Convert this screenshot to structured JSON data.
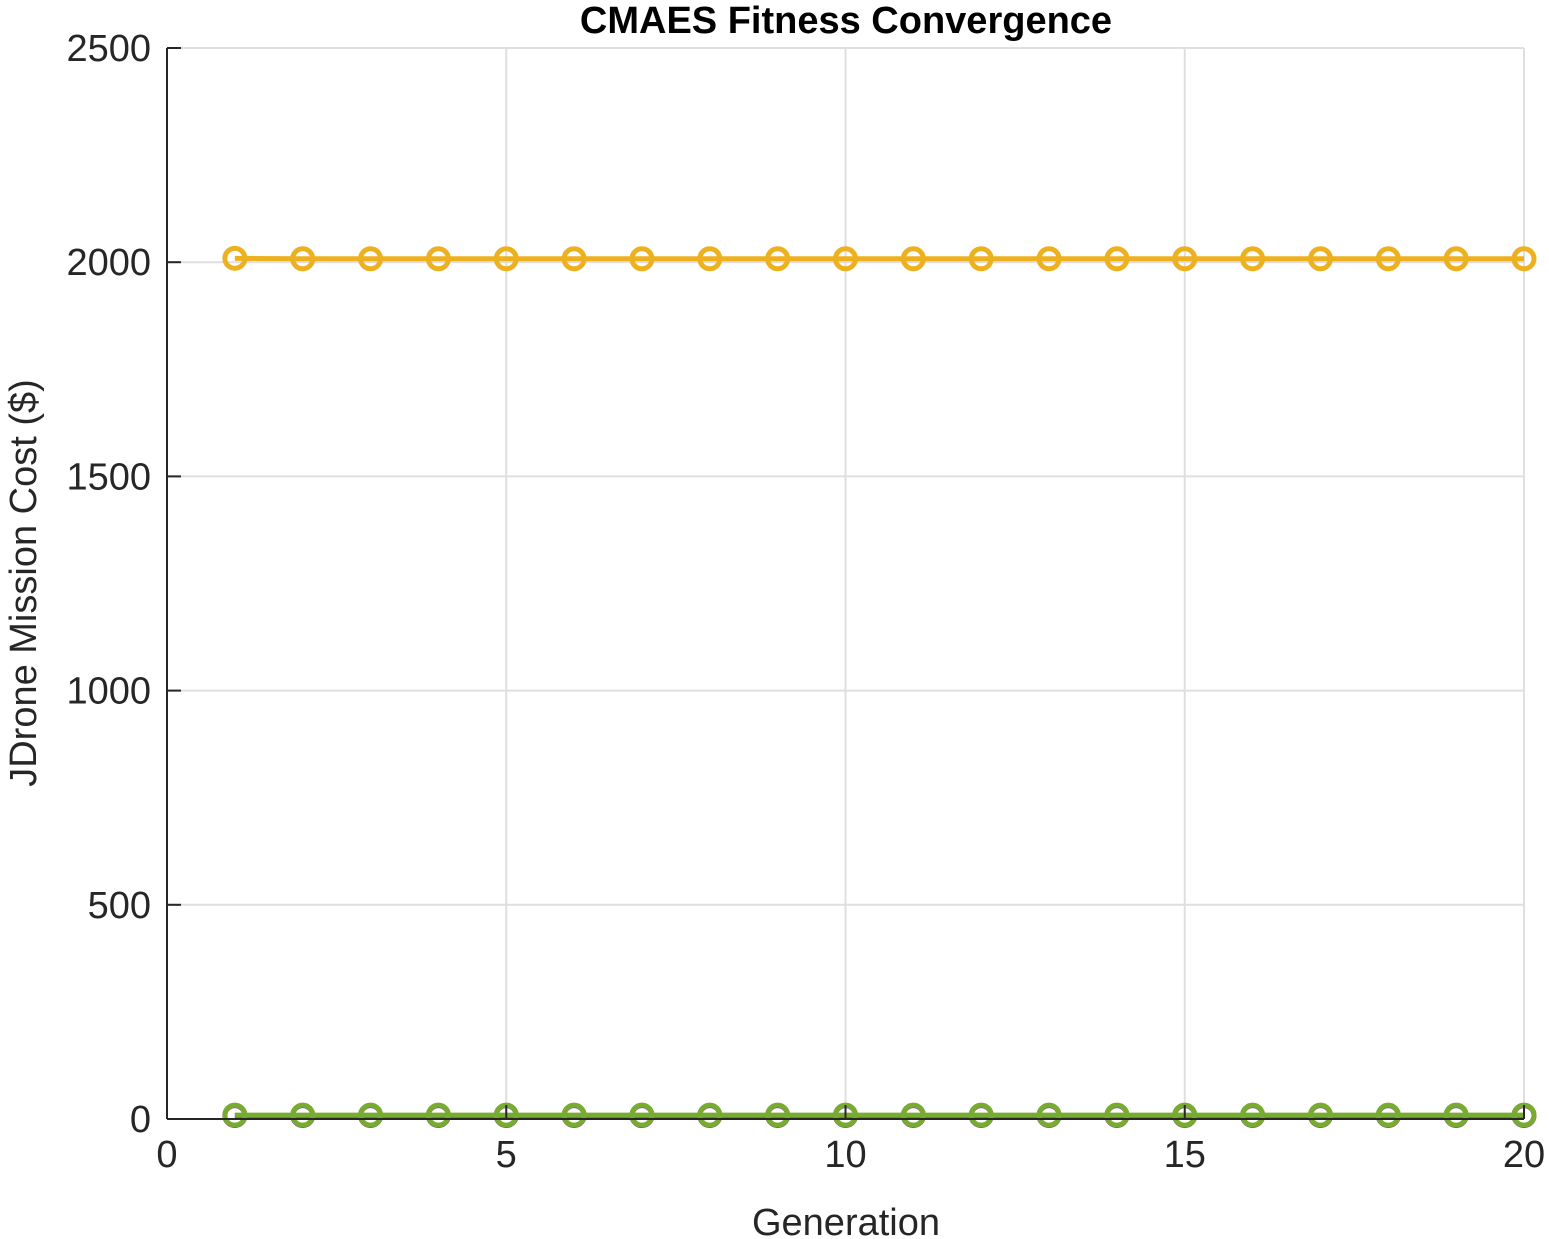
{
  "chart_data": {
    "type": "line",
    "title": "CMAES Fitness Convergence",
    "xlabel": "Generation",
    "ylabel": "JDrone Mission Cost ($)",
    "xlim": [
      0,
      20
    ],
    "ylim": [
      0,
      2500
    ],
    "xticks": [
      0,
      5,
      10,
      15,
      20
    ],
    "yticks": [
      0,
      500,
      1000,
      1500,
      2000,
      2500
    ],
    "grid": true,
    "legend": "none",
    "marker": "circle",
    "x": [
      1,
      2,
      3,
      4,
      5,
      6,
      7,
      8,
      9,
      10,
      11,
      12,
      13,
      14,
      15,
      16,
      17,
      18,
      19,
      20
    ],
    "series": [
      {
        "color": "#EDB120",
        "values": [
          2009,
          2008,
          2008,
          2008,
          2008,
          2008,
          2008,
          2008,
          2008,
          2008,
          2008,
          2008,
          2008,
          2008,
          2008,
          2008,
          2008,
          2008,
          2008,
          2008
        ]
      },
      {
        "color": "#7E2F8E",
        "values": [
          8,
          8,
          8,
          8,
          8,
          8,
          8,
          8,
          8,
          8,
          8,
          8,
          8,
          8,
          8,
          8,
          8,
          8,
          8,
          8
        ]
      },
      {
        "color": "#77AC30",
        "values": [
          9,
          9,
          9,
          9,
          9,
          9,
          9,
          9,
          9,
          9,
          9,
          9,
          9,
          9,
          9,
          9,
          9,
          9,
          9,
          9
        ]
      }
    ]
  }
}
